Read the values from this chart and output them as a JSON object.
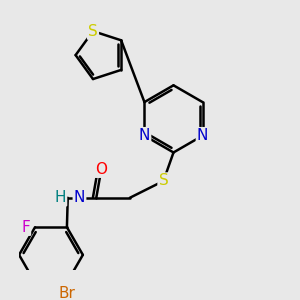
{
  "background_color": "#e8e8e8",
  "bond_color": "#000000",
  "bond_width": 1.8,
  "atom_colors": {
    "S": "#cccc00",
    "N": "#0000cc",
    "O": "#ff0000",
    "H": "#008080",
    "F": "#cc00cc",
    "Br": "#cc6600"
  },
  "font_size": 11,
  "font_size_label": 11
}
